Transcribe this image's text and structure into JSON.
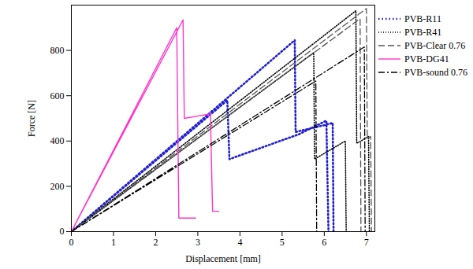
{
  "chart_data": {
    "type": "line",
    "x_label": "Displacement [mm]",
    "y_label": "Force [N]",
    "xlim": [
      0,
      7.2
    ],
    "ylim": [
      0,
      1000
    ],
    "xticks": [
      0,
      1,
      2,
      3,
      4,
      5,
      6,
      7
    ],
    "yticks": [
      0,
      200,
      400,
      600,
      800
    ],
    "grid": false,
    "legend": "right",
    "series": [
      {
        "name": "PVB-R11",
        "color": "#1f1fd0",
        "line_style": "dotted",
        "x": [
          0,
          3.7,
          3.75,
          5.4,
          6.05,
          6.1,
          null,
          0,
          5.3,
          5.32,
          6.0,
          6.2,
          6.22
        ],
        "values": [
          0,
          580,
          320,
          430,
          490,
          0,
          null,
          0,
          845,
          440,
          470,
          480,
          0
        ]
      },
      {
        "name": "PVB-R41",
        "color": "#000000",
        "line_style": "fine_dotted",
        "x": [
          0,
          6.75,
          6.77,
          7.05,
          7.07,
          null,
          0,
          5.75,
          5.77,
          6.5,
          6.52
        ],
        "values": [
          0,
          975,
          390,
          420,
          0,
          null,
          0,
          790,
          320,
          400,
          0
        ]
      },
      {
        "name": "PVB-Clear 0.76",
        "color": "#555555",
        "line_style": "dashed",
        "x": [
          0,
          7.0,
          7.02,
          7.1,
          7.12,
          null,
          0,
          6.85,
          6.87
        ],
        "values": [
          0,
          985,
          410,
          420,
          0,
          null,
          0,
          940,
          0
        ]
      },
      {
        "name": "PVB-DG41",
        "color": "#ff33cc",
        "line_style": "solid",
        "x": [
          0,
          2.65,
          2.68,
          3.3,
          3.35,
          3.5,
          null,
          0,
          2.5,
          2.55,
          2.95
        ],
        "values": [
          0,
          935,
          500,
          520,
          90,
          90,
          null,
          0,
          900,
          60,
          60
        ]
      },
      {
        "name": "PVB-sound 0.76",
        "color": "#000000",
        "line_style": "dashdot",
        "x": [
          0,
          6.95,
          6.97,
          null,
          0,
          5.8,
          5.82
        ],
        "values": [
          0,
          815,
          0,
          null,
          0,
          665,
          0
        ]
      }
    ]
  }
}
